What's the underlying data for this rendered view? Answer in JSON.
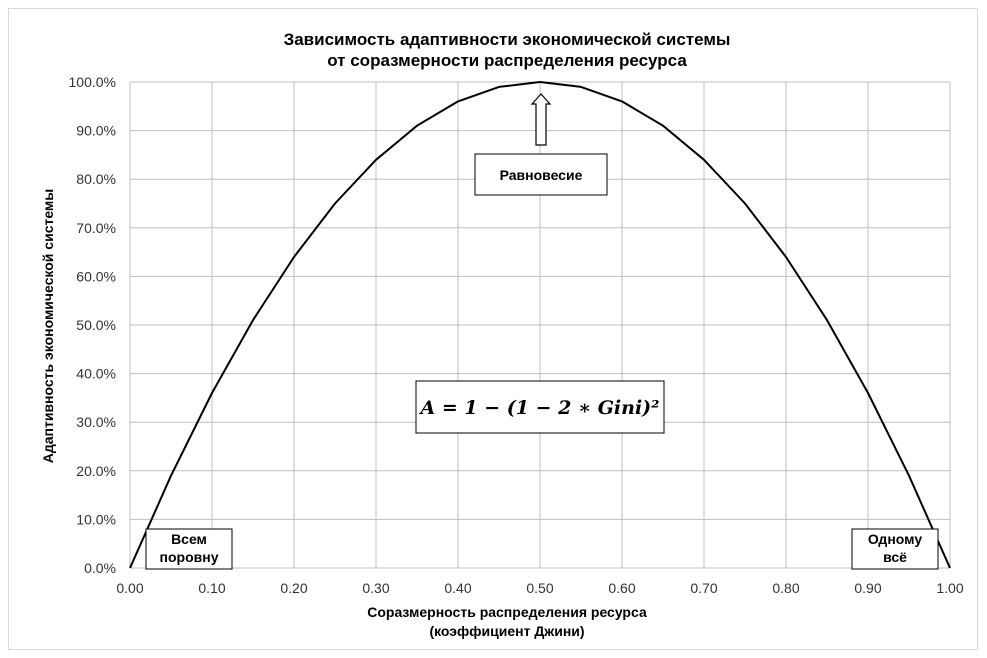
{
  "chart_data": {
    "type": "line",
    "title_line1": "Зависимость адаптивности экономической системы",
    "title_line2": "от соразмерности распределения ресурса",
    "xlabel_line1": "Соразмерность распределения ресурса",
    "xlabel_line2": "(коэффициент Джини)",
    "ylabel": "Адаптивность экономической системы",
    "xlim": [
      0,
      1
    ],
    "ylim": [
      0,
      100
    ],
    "grid": true,
    "x_ticks": [
      "0.00",
      "0.10",
      "0.20",
      "0.30",
      "0.40",
      "0.50",
      "0.60",
      "0.70",
      "0.80",
      "0.90",
      "1.00"
    ],
    "y_ticks": [
      "0.0%",
      "10.0%",
      "20.0%",
      "30.0%",
      "40.0%",
      "50.0%",
      "60.0%",
      "70.0%",
      "80.0%",
      "90.0%",
      "100.0%"
    ],
    "x": [
      0,
      0.05,
      0.1,
      0.15,
      0.2,
      0.25,
      0.3,
      0.35,
      0.4,
      0.45,
      0.5,
      0.55,
      0.6,
      0.65,
      0.7,
      0.75,
      0.8,
      0.85,
      0.9,
      0.95,
      1
    ],
    "y": [
      0,
      19,
      36,
      51,
      64,
      75,
      84,
      91,
      96,
      99,
      100,
      99,
      96,
      91,
      84,
      75,
      64,
      51,
      36,
      19,
      0
    ],
    "line_color": "#000000",
    "annotations": {
      "equilibrium": "Равновесие",
      "formula": "A = 1 − (1 − 2 ∗ Gini)²",
      "left_line1": "Всем",
      "left_line2": "поровну",
      "right_line1": "Одному",
      "right_line2": "всё"
    }
  }
}
